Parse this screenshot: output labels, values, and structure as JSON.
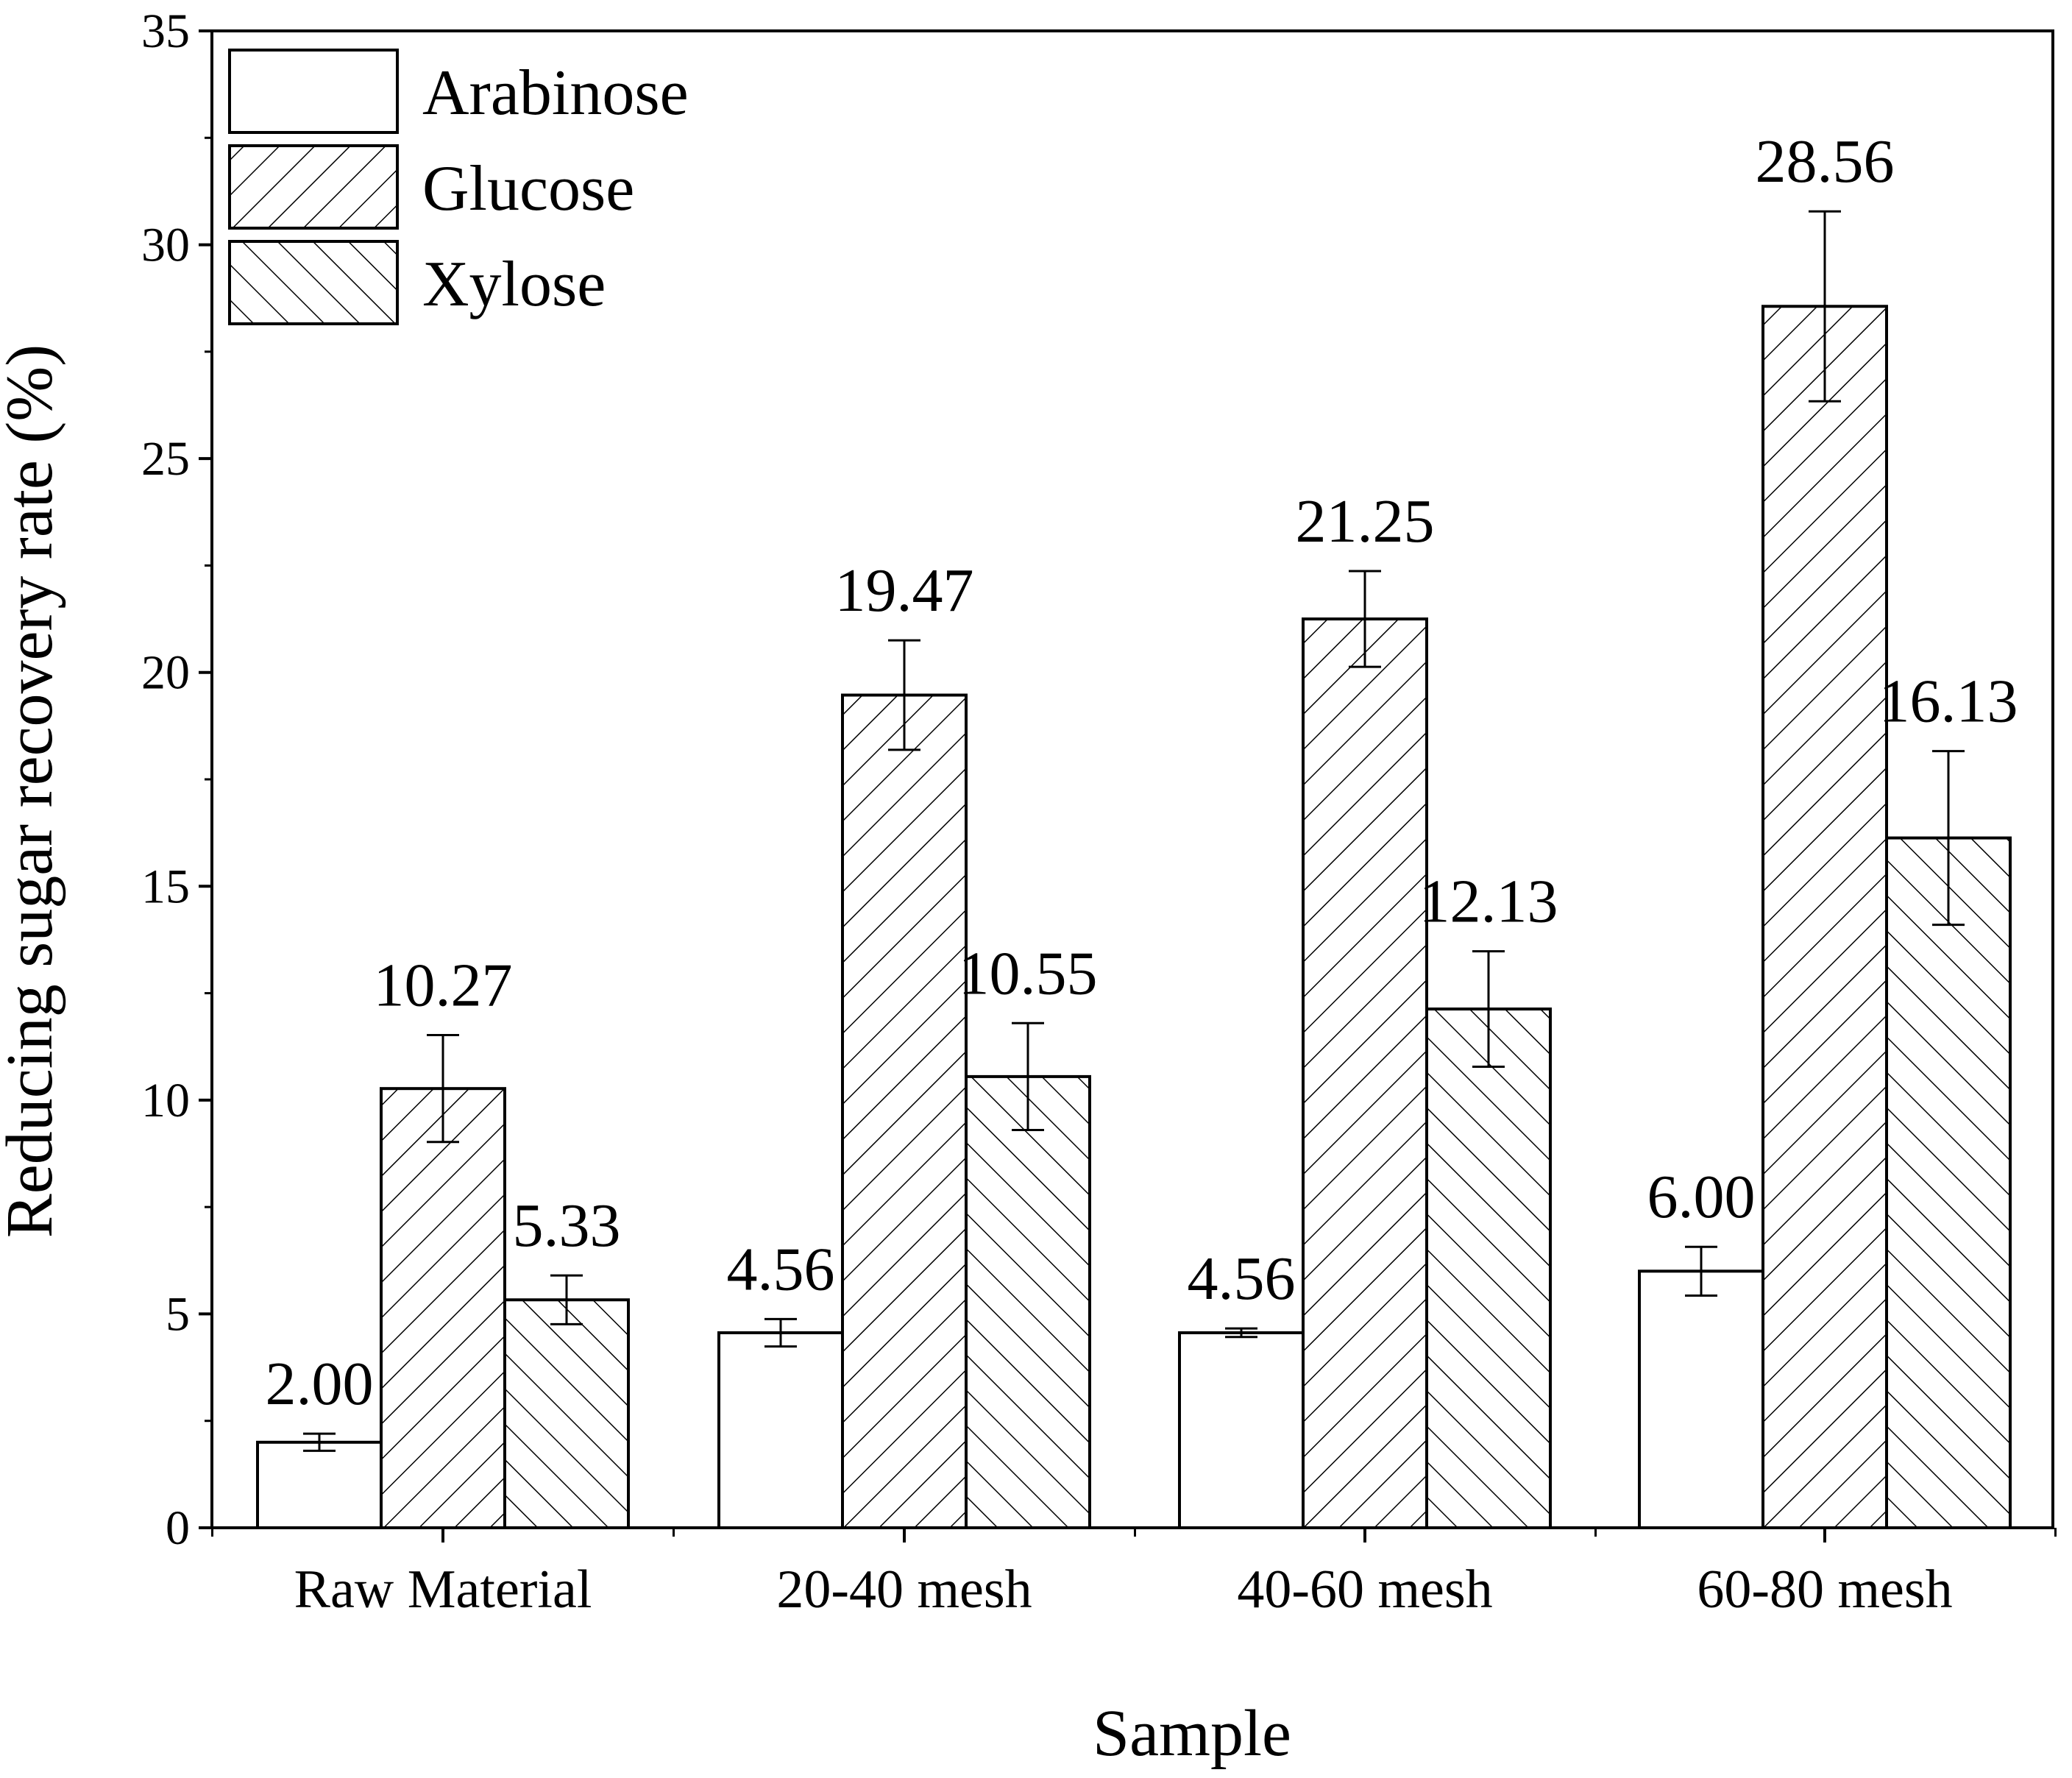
{
  "chart_data": {
    "type": "bar",
    "xlabel": "Sample",
    "ylabel": "Reducing sugar recovery rate (%)",
    "ylim": [
      0,
      35
    ],
    "yticks": [
      0,
      5,
      10,
      15,
      20,
      25,
      30,
      35
    ],
    "categories": [
      "Raw Material",
      "20-40 mesh",
      "40-60 mesh",
      "60-80 mesh"
    ],
    "series": [
      {
        "name": "Arabinose",
        "pattern": "none",
        "values": [
          2.0,
          4.56,
          4.56,
          6.0
        ],
        "errors": [
          0.2,
          0.32,
          0.1,
          0.57
        ],
        "labels": [
          "2.00",
          "4.56",
          "4.56",
          "6.00"
        ]
      },
      {
        "name": "Glucose",
        "pattern": "forward-hatch",
        "values": [
          10.27,
          19.47,
          21.25,
          28.56
        ],
        "errors": [
          1.25,
          1.28,
          1.12,
          2.22
        ],
        "labels": [
          "10.27",
          "19.47",
          "21.25",
          "28.56"
        ]
      },
      {
        "name": "Xylose",
        "pattern": "back-hatch",
        "values": [
          5.33,
          10.55,
          12.13,
          16.13
        ],
        "errors": [
          0.57,
          1.25,
          1.35,
          2.03
        ],
        "labels": [
          "5.33",
          "10.55",
          "12.13",
          "16.13"
        ]
      }
    ],
    "legend_position": "top-left",
    "grid": false,
    "colors": {
      "stroke": "#000000",
      "fill": "#ffffff"
    }
  }
}
